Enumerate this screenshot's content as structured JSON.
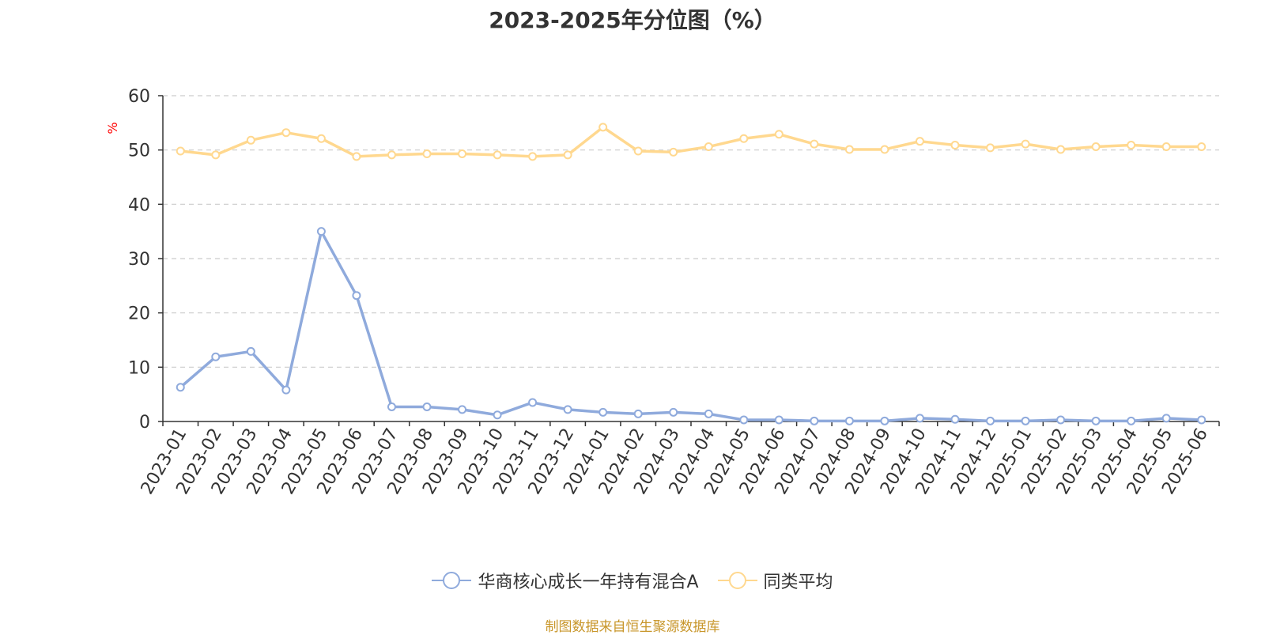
{
  "colors": {
    "fund": "#8faadc",
    "average": "#ffd88f",
    "axis": "#333333",
    "grid": "#cccccc",
    "unit": "#ff0000",
    "footer": "#c8962a"
  },
  "footer": "制图数据来自恒生聚源数据库",
  "chart_data": {
    "type": "line",
    "title": "2023-2025年分位图（%）",
    "ylabel": "%",
    "ylim": [
      0,
      60
    ],
    "yticks": [
      0,
      10,
      20,
      30,
      40,
      50,
      60
    ],
    "grid": true,
    "legend_position": "bottom",
    "categories": [
      "2023-01",
      "2023-02",
      "2023-03",
      "2023-04",
      "2023-05",
      "2023-06",
      "2023-07",
      "2023-08",
      "2023-09",
      "2023-10",
      "2023-11",
      "2023-12",
      "2024-01",
      "2024-02",
      "2024-03",
      "2024-04",
      "2024-05",
      "2024-06",
      "2024-07",
      "2024-08",
      "2024-09",
      "2024-10",
      "2024-11",
      "2024-12",
      "2025-01",
      "2025-02",
      "2025-03",
      "2025-04",
      "2025-05",
      "2025-06"
    ],
    "series": [
      {
        "name": "华商核心成长一年持有混合A",
        "color_key": "fund",
        "values": [
          6.3,
          11.9,
          12.9,
          5.8,
          35.0,
          23.2,
          2.7,
          2.7,
          2.2,
          1.2,
          3.5,
          2.2,
          1.7,
          1.4,
          1.7,
          1.4,
          0.3,
          0.3,
          0.1,
          0.1,
          0.1,
          0.6,
          0.4,
          0.1,
          0.1,
          0.3,
          0.1,
          0.1,
          0.6,
          0.3
        ]
      },
      {
        "name": "同类平均",
        "color_key": "average",
        "values": [
          49.8,
          49.1,
          51.8,
          53.2,
          52.1,
          48.8,
          49.1,
          49.3,
          49.3,
          49.1,
          48.8,
          49.1,
          54.2,
          49.8,
          49.6,
          50.6,
          52.1,
          52.9,
          51.1,
          50.1,
          50.1,
          51.6,
          50.9,
          50.4,
          51.1,
          50.1,
          50.6,
          50.9,
          50.6,
          50.6
        ]
      }
    ]
  }
}
